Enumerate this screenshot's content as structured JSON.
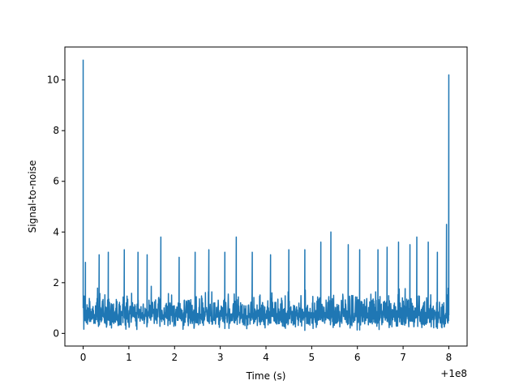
{
  "chart_data": {
    "type": "line",
    "title": "",
    "xlabel": "Time (s)",
    "ylabel": "Signal-to-noise",
    "x_offset_label": "+1e8",
    "xlim": [
      -0.4,
      8.4
    ],
    "ylim": [
      -0.5,
      11.3
    ],
    "xticks": [
      0,
      1,
      2,
      3,
      4,
      5,
      6,
      7,
      8
    ],
    "xtick_labels": [
      "0",
      "1",
      "2",
      "3",
      "4",
      "5",
      "6",
      "7",
      "8"
    ],
    "yticks": [
      0,
      2,
      4,
      6,
      8,
      10
    ],
    "ytick_labels": [
      "0",
      "2",
      "4",
      "6",
      "8",
      "10"
    ],
    "grid": false,
    "legend": "none",
    "series_color": "#1f77b4",
    "series": [
      {
        "x_range": [
          0,
          8
        ],
        "baseline_range": [
          0.1,
          2.0
        ],
        "spikes": [
          {
            "x": 0.0,
            "y": 10.8
          },
          {
            "x": 0.05,
            "y": 2.8
          },
          {
            "x": 0.35,
            "y": 3.1
          },
          {
            "x": 0.55,
            "y": 3.2
          },
          {
            "x": 0.9,
            "y": 3.3
          },
          {
            "x": 1.2,
            "y": 3.2
          },
          {
            "x": 1.4,
            "y": 3.1
          },
          {
            "x": 1.7,
            "y": 3.8
          },
          {
            "x": 2.1,
            "y": 3.0
          },
          {
            "x": 2.45,
            "y": 3.2
          },
          {
            "x": 2.75,
            "y": 3.3
          },
          {
            "x": 3.1,
            "y": 3.2
          },
          {
            "x": 3.35,
            "y": 3.8
          },
          {
            "x": 3.7,
            "y": 3.2
          },
          {
            "x": 4.1,
            "y": 3.1
          },
          {
            "x": 4.5,
            "y": 3.3
          },
          {
            "x": 4.85,
            "y": 3.3
          },
          {
            "x": 5.2,
            "y": 3.6
          },
          {
            "x": 5.42,
            "y": 4.0
          },
          {
            "x": 5.8,
            "y": 3.5
          },
          {
            "x": 6.05,
            "y": 3.3
          },
          {
            "x": 6.45,
            "y": 3.3
          },
          {
            "x": 6.65,
            "y": 3.4
          },
          {
            "x": 6.9,
            "y": 3.6
          },
          {
            "x": 7.15,
            "y": 3.5
          },
          {
            "x": 7.3,
            "y": 3.8
          },
          {
            "x": 7.55,
            "y": 3.6
          },
          {
            "x": 7.75,
            "y": 3.2
          },
          {
            "x": 7.95,
            "y": 4.3
          },
          {
            "x": 8.0,
            "y": 10.2
          }
        ]
      }
    ]
  }
}
